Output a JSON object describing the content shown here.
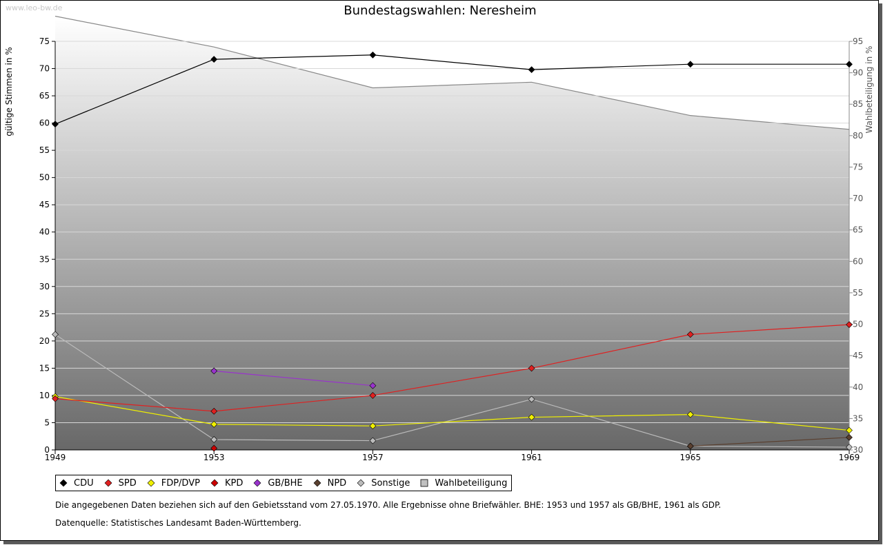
{
  "watermark": "www.leo-bw.de",
  "chart_data": {
    "type": "line",
    "title": "Bundestagswahlen: Neresheim",
    "ylabel": "gültige Stimmen in %",
    "y2label": "Wahlbeteiligung in %",
    "x": [
      1949,
      1953,
      1957,
      1961,
      1965,
      1969
    ],
    "x_ticks": [
      "1949",
      "1953",
      "1957",
      "1961",
      "1965",
      "1969"
    ],
    "ylim": [
      0,
      75
    ],
    "y_ticks": [
      0,
      5,
      10,
      15,
      20,
      25,
      30,
      35,
      40,
      45,
      50,
      55,
      60,
      65,
      70,
      75
    ],
    "y2lim": [
      30,
      95
    ],
    "y2_ticks": [
      30,
      35,
      40,
      45,
      50,
      55,
      60,
      65,
      70,
      75,
      80,
      85,
      90,
      95
    ],
    "grid": true,
    "legend_position": "bottom",
    "area": {
      "name": "Wahlbeteiligung",
      "axis": "right",
      "values": [
        99.0,
        94.1,
        87.6,
        88.5,
        83.2,
        81.0
      ],
      "color": "#888888"
    },
    "series": [
      {
        "name": "CDU",
        "color": "#000000",
        "values": [
          59.8,
          71.7,
          72.5,
          69.8,
          70.8,
          70.8
        ]
      },
      {
        "name": "SPD",
        "color": "#e02020",
        "values": [
          9.4,
          7.1,
          10.0,
          15.0,
          21.2,
          23.0
        ]
      },
      {
        "name": "FDP/DVP",
        "color": "#f0f000",
        "values": [
          9.8,
          4.7,
          4.4,
          6.0,
          6.5,
          3.6
        ]
      },
      {
        "name": "KPD",
        "color": "#cc0000",
        "values": [
          null,
          0.3,
          null,
          null,
          null,
          null
        ]
      },
      {
        "name": "GB/BHE",
        "color": "#9933cc",
        "values": [
          null,
          14.5,
          11.8,
          null,
          null,
          null
        ]
      },
      {
        "name": "NPD",
        "color": "#5a4030",
        "values": [
          null,
          null,
          null,
          null,
          0.7,
          2.3
        ]
      },
      {
        "name": "Sonstige",
        "color": "#bbbbbb",
        "values": [
          21.2,
          1.9,
          1.7,
          9.3,
          0.7,
          0.5
        ]
      }
    ]
  },
  "legend": [
    {
      "label": "CDU",
      "color": "#000000",
      "shape": "diamond"
    },
    {
      "label": "SPD",
      "color": "#e02020",
      "shape": "diamond"
    },
    {
      "label": "FDP/DVP",
      "color": "#f0f000",
      "shape": "diamond"
    },
    {
      "label": "KPD",
      "color": "#cc0000",
      "shape": "diamond"
    },
    {
      "label": "GB/BHE",
      "color": "#9933cc",
      "shape": "diamond"
    },
    {
      "label": "NPD",
      "color": "#5a4030",
      "shape": "diamond"
    },
    {
      "label": "Sonstige",
      "color": "#bbbbbb",
      "shape": "diamond"
    },
    {
      "label": "Wahlbeteiligung",
      "color": "#c0c0c0",
      "shape": "square"
    }
  ],
  "notes": {
    "line1": "Die angegebenen Daten beziehen sich auf den Gebietsstand vom 27.05.1970. Alle Ergebnisse ohne Briefwähler. BHE: 1953 und 1957 als GB/BHE, 1961 als GDP.",
    "line2": "Datenquelle: Statistisches Landesamt Baden-Württemberg."
  }
}
